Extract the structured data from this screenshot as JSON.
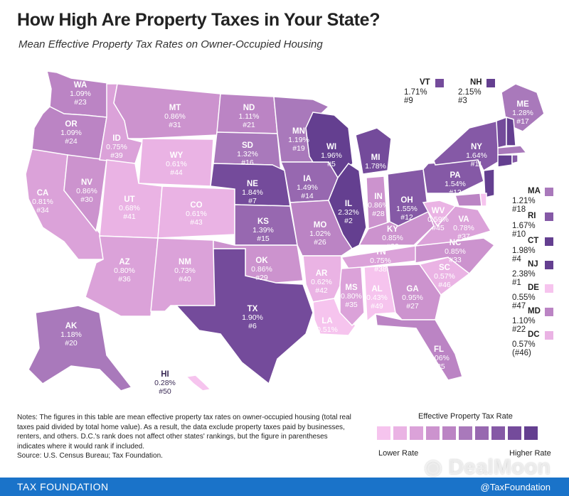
{
  "title": "How High Are Property Taxes in Your State?",
  "subtitle": "Mean Effective Property Tax Rates on Owner-Occupied Housing",
  "colors": {
    "scale": [
      "#f6c4ee",
      "#eab3e4",
      "#dba2d9",
      "#cc93ce",
      "#bb84c4",
      "#a979bb",
      "#9768b0",
      "#8559a6",
      "#744b9b",
      "#643f90"
    ],
    "border": "#ffffff"
  },
  "states": [
    {
      "abbr": "WA",
      "rate": "1.09%",
      "rank": "#23",
      "level": 4
    },
    {
      "abbr": "OR",
      "rate": "1.09%",
      "rank": "#24",
      "level": 4
    },
    {
      "abbr": "CA",
      "rate": "0.81%",
      "rank": "#34",
      "level": 2
    },
    {
      "abbr": "NV",
      "rate": "0.86%",
      "rank": "#30",
      "level": 3
    },
    {
      "abbr": "ID",
      "rate": "0.75%",
      "rank": "#39",
      "level": 2
    },
    {
      "abbr": "MT",
      "rate": "0.86%",
      "rank": "#31",
      "level": 3
    },
    {
      "abbr": "WY",
      "rate": "0.61%",
      "rank": "#44",
      "level": 1
    },
    {
      "abbr": "UT",
      "rate": "0.68%",
      "rank": "#41",
      "level": 1
    },
    {
      "abbr": "AZ",
      "rate": "0.80%",
      "rank": "#36",
      "level": 2
    },
    {
      "abbr": "CO",
      "rate": "0.61%",
      "rank": "#43",
      "level": 1
    },
    {
      "abbr": "NM",
      "rate": "0.73%",
      "rank": "#40",
      "level": 2
    },
    {
      "abbr": "ND",
      "rate": "1.11%",
      "rank": "#21",
      "level": 4
    },
    {
      "abbr": "SD",
      "rate": "1.32%",
      "rank": "#16",
      "level": 5
    },
    {
      "abbr": "NE",
      "rate": "1.84%",
      "rank": "#7",
      "level": 8
    },
    {
      "abbr": "KS",
      "rate": "1.39%",
      "rank": "#15",
      "level": 6
    },
    {
      "abbr": "OK",
      "rate": "0.86%",
      "rank": "#29",
      "level": 3
    },
    {
      "abbr": "TX",
      "rate": "1.90%",
      "rank": "#6",
      "level": 8
    },
    {
      "abbr": "MN",
      "rate": "1.19%",
      "rank": "#19",
      "level": 5
    },
    {
      "abbr": "IA",
      "rate": "1.49%",
      "rank": "#14",
      "level": 6
    },
    {
      "abbr": "MO",
      "rate": "1.02%",
      "rank": "#26",
      "level": 4
    },
    {
      "abbr": "AR",
      "rate": "0.62%",
      "rank": "#42",
      "level": 1
    },
    {
      "abbr": "LA",
      "rate": "0.51%",
      "rank": "#48",
      "level": 0
    },
    {
      "abbr": "WI",
      "rate": "1.96%",
      "rank": "#5",
      "level": 9
    },
    {
      "abbr": "IL",
      "rate": "2.32%",
      "rank": "#2",
      "level": 9
    },
    {
      "abbr": "MI",
      "rate": "1.78%",
      "rank": "#8",
      "level": 8
    },
    {
      "abbr": "IN",
      "rate": "0.86%",
      "rank": "#28",
      "level": 3
    },
    {
      "abbr": "OH",
      "rate": "1.55%",
      "rank": "#12",
      "level": 7
    },
    {
      "abbr": "KY",
      "rate": "0.85%",
      "rank": "#32",
      "level": 3
    },
    {
      "abbr": "TN",
      "rate": "0.75%",
      "rank": "#38",
      "level": 2
    },
    {
      "abbr": "MS",
      "rate": "0.80%",
      "rank": "#35",
      "level": 2
    },
    {
      "abbr": "AL",
      "rate": "0.43%",
      "rank": "#49",
      "level": 0
    },
    {
      "abbr": "GA",
      "rate": "0.95%",
      "rank": "#27",
      "level": 3
    },
    {
      "abbr": "FL",
      "rate": "1.06%",
      "rank": "#25",
      "level": 4
    },
    {
      "abbr": "SC",
      "rate": "0.57%",
      "rank": "#46",
      "level": 1
    },
    {
      "abbr": "NC",
      "rate": "0.85%",
      "rank": "#33",
      "level": 3
    },
    {
      "abbr": "VA",
      "rate": "0.78%",
      "rank": "#37",
      "level": 2
    },
    {
      "abbr": "WV",
      "rate": "0.59%",
      "rank": "#45",
      "level": 1
    },
    {
      "abbr": "PA",
      "rate": "1.54%",
      "rank": "#13",
      "level": 7
    },
    {
      "abbr": "NY",
      "rate": "1.64%",
      "rank": "#11",
      "level": 7
    },
    {
      "abbr": "ME",
      "rate": "1.28%",
      "rank": "#17",
      "level": 5
    },
    {
      "abbr": "AK",
      "rate": "1.18%",
      "rank": "#20",
      "level": 5
    },
    {
      "abbr": "HI",
      "rate": "0.28%",
      "rank": "#50",
      "level": 0
    }
  ],
  "side_states": [
    {
      "abbr": "VT",
      "text": "1.71% #9",
      "level": 8
    },
    {
      "abbr": "NH",
      "text": "2.15% #3",
      "level": 9
    },
    {
      "abbr": "MA",
      "text": "1.21% #18",
      "level": 5
    },
    {
      "abbr": "RI",
      "text": "1.67% #10",
      "level": 7
    },
    {
      "abbr": "CT",
      "text": "1.98% #4",
      "level": 9
    },
    {
      "abbr": "NJ",
      "text": "2.38% #1",
      "level": 9
    },
    {
      "abbr": "DE",
      "text": "0.55% #47",
      "level": 0
    },
    {
      "abbr": "MD",
      "text": "1.10% #22",
      "level": 4
    },
    {
      "abbr": "DC",
      "text": "0.57% (#46)",
      "level": 1
    }
  ],
  "notes": "Notes: The figures in this table are mean effective property tax rates on owner-occupied housing (total real taxes paid divided by total home value). As a result, the data exclude property taxes paid by businesses, renters, and others. D.C.'s rank does not affect other states' rankings, but the figure in parentheses indicates where it would rank if included.",
  "source": "Source: U.S. Census Bureau; Tax Foundation.",
  "legend": {
    "title": "Effective Property Tax Rate",
    "low": "Lower Rate",
    "high": "Higher Rate"
  },
  "footer": {
    "brand": "TAX FOUNDATION",
    "handle": "@TaxFoundation"
  },
  "watermark": "DealMoon"
}
